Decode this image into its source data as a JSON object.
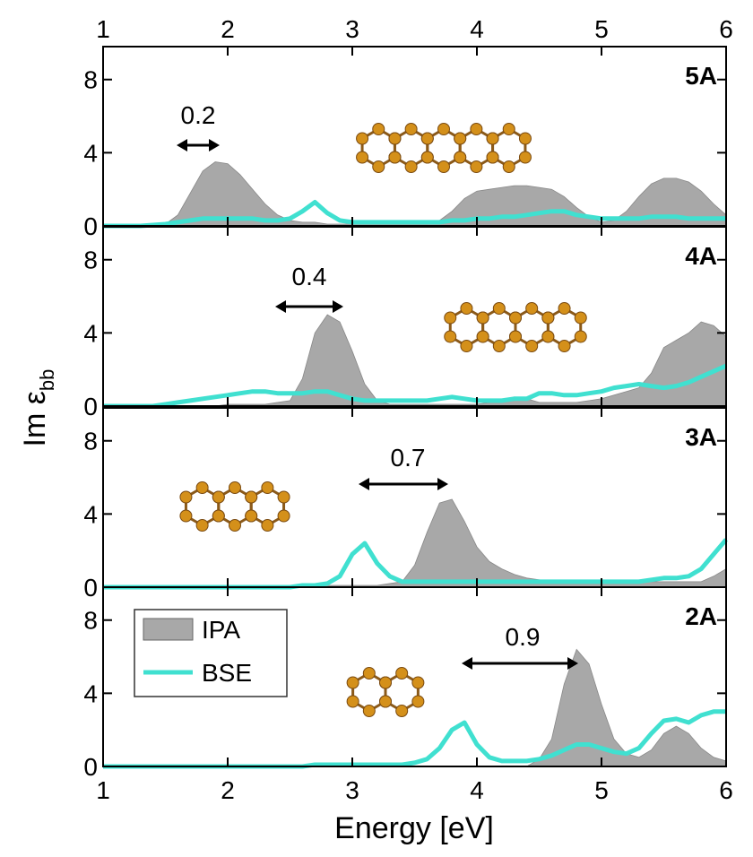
{
  "figure": {
    "ylabel": "Im ε",
    "ylabel_subscript": "bb",
    "xlabel": "Energy [eV]"
  },
  "chart_data": [
    {
      "type": "area-line",
      "label": "5A",
      "annotation": "0.2",
      "xlim": [
        1,
        6
      ],
      "ylim": [
        0,
        9.8
      ],
      "xticks": [
        1,
        2,
        3,
        4,
        5,
        6
      ],
      "yticks": [
        0,
        4,
        8
      ],
      "x": [
        1,
        1.1,
        1.2,
        1.3,
        1.4,
        1.5,
        1.6,
        1.7,
        1.8,
        1.9,
        2,
        2.1,
        2.2,
        2.3,
        2.4,
        2.5,
        2.6,
        2.7,
        2.8,
        2.9,
        3,
        3.1,
        3.2,
        3.3,
        3.4,
        3.5,
        3.6,
        3.7,
        3.8,
        3.9,
        4,
        4.1,
        4.2,
        4.3,
        4.4,
        4.5,
        4.6,
        4.7,
        4.8,
        4.9,
        5,
        5.1,
        5.2,
        5.3,
        5.4,
        5.5,
        5.6,
        5.7,
        5.8,
        5.9,
        6
      ],
      "series": [
        {
          "name": "IPA",
          "color": "#a8a8a8",
          "values": [
            0,
            0,
            0,
            0,
            0,
            0.1,
            0.6,
            1.8,
            3.0,
            3.5,
            3.4,
            2.8,
            2.0,
            1.2,
            0.6,
            0.3,
            0.2,
            0.2,
            0.1,
            0.1,
            0.1,
            0.1,
            0.1,
            0.1,
            0.1,
            0.1,
            0.1,
            0.3,
            0.8,
            1.5,
            1.9,
            2.0,
            2.1,
            2.2,
            2.2,
            2.1,
            2.0,
            1.6,
            1.0,
            0.5,
            0.2,
            0.3,
            0.8,
            1.6,
            2.3,
            2.6,
            2.6,
            2.4,
            1.9,
            1.2,
            0.6
          ]
        },
        {
          "name": "BSE",
          "color": "#40e0d0",
          "values": [
            0,
            0,
            0,
            0,
            0.05,
            0.1,
            0.2,
            0.3,
            0.4,
            0.4,
            0.4,
            0.4,
            0.4,
            0.3,
            0.3,
            0.4,
            0.8,
            1.3,
            0.7,
            0.3,
            0.2,
            0.2,
            0.2,
            0.2,
            0.2,
            0.2,
            0.2,
            0.2,
            0.3,
            0.3,
            0.4,
            0.4,
            0.5,
            0.5,
            0.6,
            0.7,
            0.8,
            0.8,
            0.6,
            0.5,
            0.4,
            0.4,
            0.4,
            0.4,
            0.5,
            0.5,
            0.5,
            0.4,
            0.4,
            0.4,
            0.4
          ]
        }
      ]
    },
    {
      "type": "area-line",
      "label": "4A",
      "annotation": "0.4",
      "xlim": [
        1,
        6
      ],
      "ylim": [
        0,
        9.8
      ],
      "xticks": [
        1,
        2,
        3,
        4,
        5,
        6
      ],
      "yticks": [
        0,
        4,
        8
      ],
      "x": [
        1,
        1.1,
        1.2,
        1.3,
        1.4,
        1.5,
        1.6,
        1.7,
        1.8,
        1.9,
        2,
        2.1,
        2.2,
        2.3,
        2.4,
        2.5,
        2.6,
        2.7,
        2.8,
        2.9,
        3,
        3.1,
        3.2,
        3.3,
        3.4,
        3.5,
        3.6,
        3.7,
        3.8,
        3.9,
        4,
        4.1,
        4.2,
        4.3,
        4.4,
        4.5,
        4.6,
        4.7,
        4.8,
        4.9,
        5,
        5.1,
        5.2,
        5.3,
        5.4,
        5.5,
        5.6,
        5.7,
        5.8,
        5.9,
        6
      ],
      "series": [
        {
          "name": "IPA",
          "color": "#a8a8a8",
          "values": [
            0,
            0,
            0,
            0,
            0,
            0,
            0,
            0,
            0,
            0,
            0.1,
            0.1,
            0.1,
            0.1,
            0.2,
            0.3,
            1.5,
            4.0,
            5.0,
            4.6,
            3.0,
            1.2,
            0.3,
            0.1,
            0.1,
            0.1,
            0.1,
            0.1,
            0.1,
            0.1,
            0.1,
            0.2,
            0.3,
            0.5,
            0.4,
            0.2,
            0.2,
            0.2,
            0.2,
            0.3,
            0.4,
            0.6,
            0.8,
            1.0,
            1.8,
            3.2,
            3.6,
            4.0,
            4.6,
            4.4,
            3.8
          ]
        },
        {
          "name": "BSE",
          "color": "#40e0d0",
          "values": [
            0,
            0,
            0,
            0,
            0,
            0.1,
            0.2,
            0.3,
            0.4,
            0.5,
            0.6,
            0.7,
            0.8,
            0.8,
            0.7,
            0.7,
            0.7,
            0.8,
            0.8,
            0.6,
            0.4,
            0.3,
            0.3,
            0.3,
            0.3,
            0.3,
            0.3,
            0.4,
            0.5,
            0.4,
            0.3,
            0.3,
            0.3,
            0.4,
            0.4,
            0.7,
            0.7,
            0.6,
            0.6,
            0.7,
            0.8,
            1.0,
            1.1,
            1.2,
            1.1,
            1.0,
            1.1,
            1.3,
            1.6,
            1.9,
            2.2
          ]
        }
      ]
    },
    {
      "type": "area-line",
      "label": "3A",
      "annotation": "0.7",
      "xlim": [
        1,
        6
      ],
      "ylim": [
        0,
        9.8
      ],
      "xticks": [
        1,
        2,
        3,
        4,
        5,
        6
      ],
      "yticks": [
        0,
        4,
        8
      ],
      "x": [
        1,
        1.1,
        1.2,
        1.3,
        1.4,
        1.5,
        1.6,
        1.7,
        1.8,
        1.9,
        2,
        2.1,
        2.2,
        2.3,
        2.4,
        2.5,
        2.6,
        2.7,
        2.8,
        2.9,
        3,
        3.1,
        3.2,
        3.3,
        3.4,
        3.5,
        3.6,
        3.7,
        3.8,
        3.9,
        4,
        4.1,
        4.2,
        4.3,
        4.4,
        4.5,
        4.6,
        4.7,
        4.8,
        4.9,
        5,
        5.1,
        5.2,
        5.3,
        5.4,
        5.5,
        5.6,
        5.7,
        5.8,
        5.9,
        6
      ],
      "series": [
        {
          "name": "IPA",
          "color": "#a8a8a8",
          "values": [
            0,
            0,
            0,
            0,
            0,
            0,
            0,
            0,
            0,
            0,
            0,
            0,
            0,
            0,
            0,
            0,
            0.1,
            0.1,
            0.1,
            0.1,
            0.1,
            0.1,
            0.1,
            0.2,
            0.3,
            1.2,
            3.0,
            4.6,
            4.8,
            3.6,
            2.2,
            1.4,
            1.0,
            0.7,
            0.5,
            0.4,
            0.3,
            0.3,
            0.3,
            0.3,
            0.3,
            0.3,
            0.3,
            0.3,
            0.3,
            0.3,
            0.3,
            0.3,
            0.3,
            0.6,
            1.0
          ]
        },
        {
          "name": "BSE",
          "color": "#40e0d0",
          "values": [
            0,
            0,
            0,
            0,
            0,
            0,
            0,
            0,
            0,
            0,
            0,
            0,
            0,
            0,
            0,
            0,
            0.1,
            0.1,
            0.2,
            0.6,
            1.8,
            2.4,
            1.3,
            0.6,
            0.3,
            0.3,
            0.3,
            0.3,
            0.3,
            0.3,
            0.3,
            0.3,
            0.3,
            0.3,
            0.3,
            0.3,
            0.3,
            0.3,
            0.3,
            0.3,
            0.3,
            0.3,
            0.3,
            0.3,
            0.4,
            0.5,
            0.5,
            0.6,
            1.0,
            1.8,
            2.6
          ]
        }
      ]
    },
    {
      "type": "area-line",
      "label": "2A",
      "annotation": "0.9",
      "legend": "upper left",
      "xlim": [
        1,
        6
      ],
      "ylim": [
        0,
        9.8
      ],
      "xticks": [
        1,
        2,
        3,
        4,
        5,
        6
      ],
      "yticks": [
        0,
        4,
        8
      ],
      "x": [
        1,
        1.1,
        1.2,
        1.3,
        1.4,
        1.5,
        1.6,
        1.7,
        1.8,
        1.9,
        2,
        2.1,
        2.2,
        2.3,
        2.4,
        2.5,
        2.6,
        2.7,
        2.8,
        2.9,
        3,
        3.1,
        3.2,
        3.3,
        3.4,
        3.5,
        3.6,
        3.7,
        3.8,
        3.9,
        4,
        4.1,
        4.2,
        4.3,
        4.4,
        4.5,
        4.6,
        4.7,
        4.8,
        4.9,
        5,
        5.1,
        5.2,
        5.3,
        5.4,
        5.5,
        5.6,
        5.7,
        5.8,
        5.9,
        6
      ],
      "series": [
        {
          "name": "IPA",
          "color": "#a8a8a8",
          "values": [
            0,
            0,
            0,
            0,
            0,
            0,
            0,
            0,
            0,
            0,
            0,
            0,
            0,
            0,
            0,
            0,
            0,
            0,
            0,
            0,
            0,
            0,
            0,
            0,
            0,
            0,
            0,
            0,
            0,
            0,
            0,
            0,
            0,
            0,
            0,
            0.4,
            1.5,
            4.5,
            6.4,
            5.6,
            3.4,
            1.5,
            0.7,
            0.5,
            0.9,
            1.8,
            2.2,
            1.8,
            1.0,
            0.5,
            0.3
          ]
        },
        {
          "name": "BSE",
          "color": "#40e0d0",
          "values": [
            0,
            0,
            0,
            0,
            0,
            0,
            0,
            0,
            0,
            0,
            0,
            0,
            0,
            0,
            0,
            0,
            0,
            0.1,
            0.1,
            0.1,
            0.1,
            0.1,
            0.1,
            0.1,
            0.1,
            0.2,
            0.4,
            1.0,
            2.0,
            2.4,
            1.2,
            0.5,
            0.3,
            0.3,
            0.3,
            0.4,
            0.6,
            0.9,
            1.2,
            1.2,
            1.0,
            0.8,
            0.7,
            1.0,
            1.8,
            2.5,
            2.6,
            2.4,
            2.8,
            3.0,
            3.0
          ]
        }
      ]
    }
  ]
}
